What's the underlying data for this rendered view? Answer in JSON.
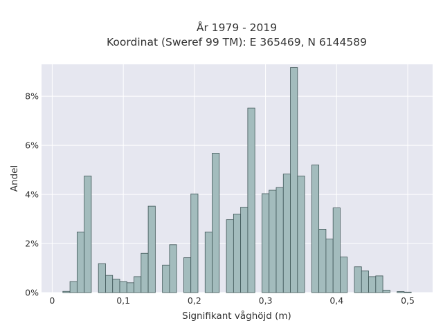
{
  "chart_data": {
    "type": "bar",
    "title_line1": "År 1979 - 2019",
    "title_line2": "Koordinat (Sweref 99 TM): E 365469, N 6144589",
    "xlabel": "Signifikant våghöjd (m)",
    "ylabel": "Andel",
    "xlim": [
      -0.015,
      0.535
    ],
    "ylim": [
      0,
      9.3
    ],
    "bin_width": 0.01,
    "x_ticks": [
      0,
      0.1,
      0.2,
      0.3,
      0.4,
      0.5
    ],
    "x_tick_labels": [
      "0",
      "0,1",
      "0,2",
      "0,3",
      "0,4",
      "0,5"
    ],
    "y_ticks": [
      0,
      2,
      4,
      6,
      8
    ],
    "y_tick_labels": [
      "0%",
      "2%",
      "4%",
      "6%",
      "8%"
    ],
    "grid": true,
    "colors": {
      "background": "#e6e7f0",
      "bar_fill": "#a3bcbd",
      "bar_stroke": "#3e5556",
      "grid": "#ffffff"
    },
    "bins": [
      {
        "x": 0.02,
        "value": 0.05
      },
      {
        "x": 0.03,
        "value": 0.45
      },
      {
        "x": 0.04,
        "value": 2.47
      },
      {
        "x": 0.05,
        "value": 4.75
      },
      {
        "x": 0.07,
        "value": 1.18
      },
      {
        "x": 0.08,
        "value": 0.7
      },
      {
        "x": 0.09,
        "value": 0.55
      },
      {
        "x": 0.1,
        "value": 0.45
      },
      {
        "x": 0.11,
        "value": 0.4
      },
      {
        "x": 0.12,
        "value": 0.65
      },
      {
        "x": 0.13,
        "value": 1.6
      },
      {
        "x": 0.14,
        "value": 3.52
      },
      {
        "x": 0.16,
        "value": 1.12
      },
      {
        "x": 0.17,
        "value": 1.95
      },
      {
        "x": 0.19,
        "value": 1.42
      },
      {
        "x": 0.2,
        "value": 4.02
      },
      {
        "x": 0.22,
        "value": 2.47
      },
      {
        "x": 0.23,
        "value": 5.68
      },
      {
        "x": 0.25,
        "value": 2.97
      },
      {
        "x": 0.26,
        "value": 3.2
      },
      {
        "x": 0.27,
        "value": 3.48
      },
      {
        "x": 0.28,
        "value": 7.52
      },
      {
        "x": 0.3,
        "value": 4.03
      },
      {
        "x": 0.31,
        "value": 4.17
      },
      {
        "x": 0.32,
        "value": 4.28
      },
      {
        "x": 0.33,
        "value": 4.83
      },
      {
        "x": 0.34,
        "value": 9.17
      },
      {
        "x": 0.35,
        "value": 4.75
      },
      {
        "x": 0.37,
        "value": 5.2
      },
      {
        "x": 0.38,
        "value": 2.58
      },
      {
        "x": 0.39,
        "value": 2.18
      },
      {
        "x": 0.4,
        "value": 3.45
      },
      {
        "x": 0.41,
        "value": 1.45
      },
      {
        "x": 0.43,
        "value": 1.05
      },
      {
        "x": 0.44,
        "value": 0.88
      },
      {
        "x": 0.45,
        "value": 0.65
      },
      {
        "x": 0.46,
        "value": 0.68
      },
      {
        "x": 0.47,
        "value": 0.1
      },
      {
        "x": 0.49,
        "value": 0.04
      },
      {
        "x": 0.5,
        "value": 0.02
      }
    ]
  }
}
